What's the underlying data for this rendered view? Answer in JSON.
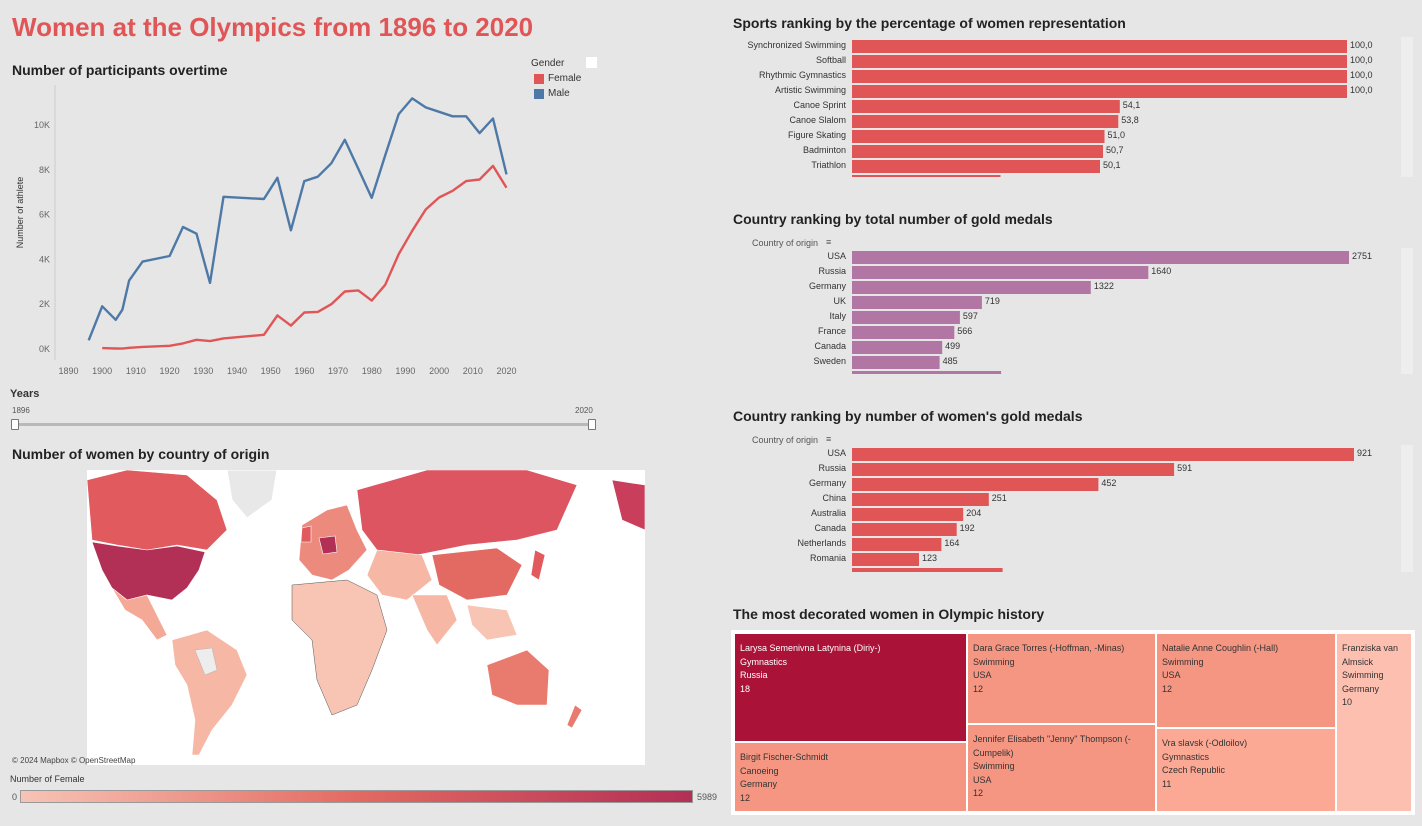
{
  "title": "Women at the Olympics from 1896 to 2020",
  "participants": {
    "title": "Number of participants overtime",
    "ylabel": "Number of athlete",
    "legend_title": "Gender",
    "legend": [
      {
        "label": "Female",
        "color": "#e05656"
      },
      {
        "label": "Male",
        "color": "#4e79a7"
      }
    ]
  },
  "years_filter": {
    "label": "Years",
    "min": "1896",
    "max": "2020"
  },
  "map": {
    "title": "Number of women by country of origin",
    "credit": "© 2024 Mapbox  © OpenStreetMap",
    "legend_label": "Number of Female",
    "legend_min": "0",
    "legend_max": "5989"
  },
  "sports": {
    "title": "Sports ranking by the percentage of women representation",
    "color": "#e05656"
  },
  "gold_total": {
    "title": "Country ranking by total number of gold medals",
    "header": "Country of origin",
    "color": "#b276a4"
  },
  "gold_women": {
    "title": "Country ranking by number of women's gold medals",
    "header": "Country of origin",
    "color": "#e05656"
  },
  "decorated": {
    "title": "The most decorated women in Olympic history",
    "cells": [
      {
        "name": "Larysa Semenivna Latynina (Diriy-)",
        "sport": "Gymnastics",
        "country": "Russia",
        "medals": "18"
      },
      {
        "name": "Dara Grace Torres (-Hoffman, -Minas)",
        "sport": "Swimming",
        "country": "USA",
        "medals": "12"
      },
      {
        "name": "Natalie Anne Coughlin (-Hall)",
        "sport": "Swimming",
        "country": "USA",
        "medals": "12"
      },
      {
        "name": "Franziska van Almsick",
        "sport": "Swimming",
        "country": "Germany",
        "medals": "10"
      },
      {
        "name": "Birgit Fischer-Schmidt",
        "sport": "Canoeing",
        "country": "Germany",
        "medals": "12"
      },
      {
        "name": "Jennifer Elisabeth \"Jenny\" Thompson (-Cumpelik)",
        "sport": "Swimming",
        "country": "USA",
        "medals": "12"
      },
      {
        "name": "Vra slavsk (-Odloilov)",
        "sport": "Gymnastics",
        "country": "Czech Republic",
        "medals": "11"
      }
    ]
  },
  "chart_data": [
    {
      "type": "line",
      "title": "Number of participants overtime",
      "xlabel": "",
      "ylabel": "Number of athlete",
      "xlim": [
        1886,
        2024
      ],
      "ylim": [
        -500,
        11800
      ],
      "x_ticks": [
        "1890",
        "1900",
        "1910",
        "1920",
        "1930",
        "1940",
        "1950",
        "1960",
        "1970",
        "1980",
        "1990",
        "2000",
        "2010",
        "2020"
      ],
      "y_ticks": [
        "0K",
        "2K",
        "4K",
        "6K",
        "8K",
        "10K"
      ],
      "series": [
        {
          "name": "Male",
          "color": "#4e79a7",
          "x": [
            1896,
            1900,
            1904,
            1906,
            1908,
            1912,
            1920,
            1924,
            1928,
            1932,
            1936,
            1948,
            1952,
            1956,
            1960,
            1964,
            1968,
            1972,
            1976,
            1980,
            1984,
            1988,
            1992,
            1996,
            2000,
            2004,
            2008,
            2012,
            2016,
            2020
          ],
          "y": [
            380,
            1900,
            1300,
            1750,
            3050,
            3900,
            4150,
            5450,
            5150,
            2950,
            6800,
            6700,
            7650,
            5300,
            7500,
            7700,
            8300,
            9350,
            8050,
            6750,
            8650,
            10500,
            11200,
            10800,
            10600,
            10400,
            10400,
            9650,
            10300,
            7800
          ]
        },
        {
          "name": "Female",
          "color": "#e05656",
          "x": [
            1900,
            1904,
            1906,
            1908,
            1912,
            1920,
            1924,
            1928,
            1932,
            1936,
            1948,
            1952,
            1956,
            1960,
            1964,
            1968,
            1972,
            1976,
            1980,
            1984,
            1988,
            1992,
            1996,
            2000,
            2004,
            2008,
            2012,
            2016,
            2020
          ],
          "y": [
            33,
            16,
            11,
            47,
            87,
            134,
            244,
            404,
            347,
            468,
            628,
            1497,
            1040,
            1626,
            1653,
            1994,
            2565,
            2614,
            2155,
            2862,
            4238,
            5281,
            6233,
            6769,
            7070,
            7502,
            7573,
            8183,
            7200
          ]
        }
      ]
    },
    {
      "type": "bar",
      "title": "Sports ranking by the percentage of women representation",
      "categories": [
        "Synchronized Swimming",
        "Softball",
        "Rhythmic Gymnastics",
        "Artistic Swimming",
        "Canoe Sprint",
        "Canoe Slalom",
        "Figure Skating",
        "Badminton",
        "Triathlon"
      ],
      "values": [
        100.0,
        100.0,
        100.0,
        100.0,
        54.1,
        53.8,
        51.0,
        50.7,
        50.1
      ],
      "labels": [
        "100,0",
        "100,0",
        "100,0",
        "100,0",
        "54,1",
        "53,8",
        "51,0",
        "50,7",
        "50,1"
      ],
      "xlim": [
        0,
        100
      ]
    },
    {
      "type": "bar",
      "title": "Country ranking by total number of gold medals",
      "categories": [
        "USA",
        "Russia",
        "Germany",
        "UK",
        "Italy",
        "France",
        "Canada",
        "Sweden"
      ],
      "values": [
        2751,
        1640,
        1322,
        719,
        597,
        566,
        499,
        485
      ],
      "labels": [
        "2751",
        "1640",
        "1322",
        "719",
        "597",
        "566",
        "499",
        "485"
      ],
      "xlim": [
        0,
        2751
      ]
    },
    {
      "type": "bar",
      "title": "Country ranking by number of women's gold medals",
      "categories": [
        "USA",
        "Russia",
        "Germany",
        "China",
        "Australia",
        "Canada",
        "Netherlands",
        "Romania"
      ],
      "values": [
        921,
        591,
        452,
        251,
        204,
        192,
        164,
        123
      ],
      "labels": [
        "921",
        "591",
        "452",
        "251",
        "204",
        "192",
        "164",
        "123"
      ],
      "xlim": [
        0,
        921
      ]
    }
  ]
}
